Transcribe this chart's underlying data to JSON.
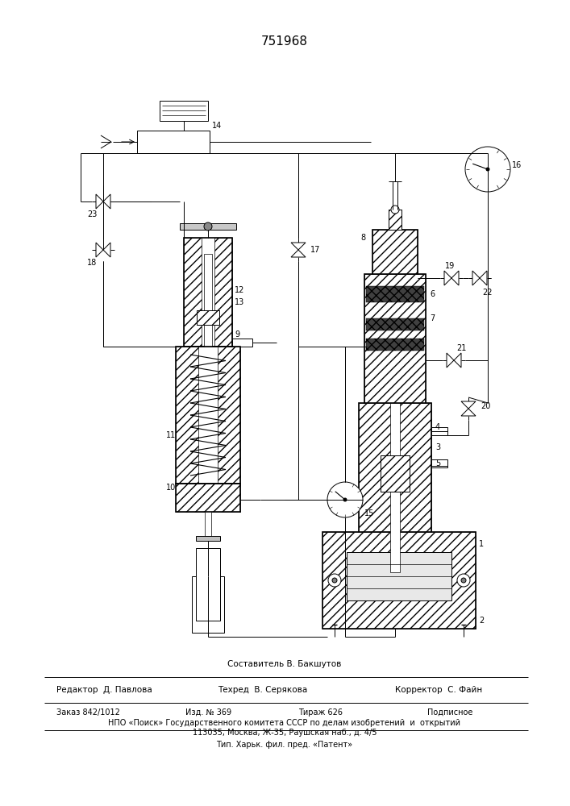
{
  "patent_number": "751968",
  "bg": "#ffffff",
  "lc": "#1a1a1a",
  "footer_line1": "Составитель В. Бакшутов",
  "footer_col2_1": "Редактор  Д. Павлова",
  "footer_col2_2": "Техред  В. Серякова",
  "footer_col2_3": "Корректор  С. Файн",
  "footer_col3_1": "Заказ 842/1012",
  "footer_col3_2": "Изд. № 369",
  "footer_col3_3": "Тираж 626",
  "footer_col3_4": "Подписное",
  "footer_line4": "НПО «Поиск» Государственного комитета СССР по делам изобретений  и  открытий",
  "footer_line5": "113035, Москва, Ж-35, Раушская наб., д. 4/5",
  "footer_line6": "Тип. Харьк. фил. пред. «Патент»"
}
